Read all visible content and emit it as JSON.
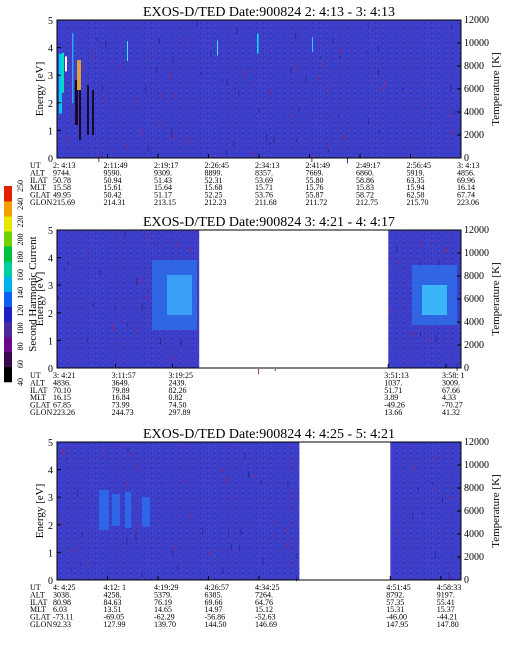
{
  "colorbar": {
    "label": "Second Harmonic Current",
    "ticks": [
      "40",
      "60",
      "80",
      "100",
      "120",
      "140",
      "160",
      "180",
      "200",
      "220",
      "240",
      "250"
    ],
    "colors": [
      "#000000",
      "#3a0a4a",
      "#6a0a8a",
      "#4a2a9a",
      "#2020c0",
      "#1060f0",
      "#00b0e8",
      "#00d0a0",
      "#00c040",
      "#70d000",
      "#e8e800",
      "#f0a000",
      "#e02000"
    ]
  },
  "chart_data": [
    {
      "type": "heatmap",
      "title": "EXOS-D/TED   Date:900824  2: 4:13 - 3: 4:13",
      "ylabel": "Energy [eV]",
      "y2label": "Temperature [K]",
      "ylim": [
        0,
        5
      ],
      "y2lim": [
        0,
        12000
      ],
      "yticks": [
        "0",
        "1",
        "2",
        "3",
        "4",
        "5"
      ],
      "y2ticks": [
        "0",
        "2000",
        "4000",
        "6000",
        "8000",
        "10000",
        "12000"
      ],
      "gaps": [],
      "row_labels": [
        "UT",
        "ALT",
        "ILAT",
        "MLT",
        "GLAT",
        "GLON"
      ],
      "columns": [
        {
          "frac": 0.0,
          "vals": [
            "2: 4:13",
            "9744.",
            "50.78",
            "15.58",
            "49.95",
            "215.69"
          ]
        },
        {
          "frac": 0.125,
          "vals": [
            "2:11:49",
            "9590.",
            "50.94",
            "15.61",
            "50.42",
            "214.31"
          ]
        },
        {
          "frac": 0.25,
          "vals": [
            "2:19:17",
            "9309.",
            "51.43",
            "15.64",
            "51.17",
            "213.15"
          ]
        },
        {
          "frac": 0.375,
          "vals": [
            "2:26:45",
            "8899.",
            "52.31",
            "15.68",
            "52.25",
            "212.23"
          ]
        },
        {
          "frac": 0.5,
          "vals": [
            "2:34:13",
            "8357.",
            "53.69",
            "15.71",
            "53.76",
            "211.68"
          ]
        },
        {
          "frac": 0.625,
          "vals": [
            "2:41:49",
            "7669.",
            "55.80",
            "15.76",
            "55.87",
            "211.72"
          ]
        },
        {
          "frac": 0.75,
          "vals": [
            "2:49:17",
            "6860.",
            "58.86",
            "15.83",
            "58.72",
            "212.75"
          ]
        },
        {
          "frac": 0.875,
          "vals": [
            "2:56:45",
            "5919.",
            "63.35",
            "15.94",
            "62.58",
            "215.70"
          ]
        },
        {
          "frac": 1.0,
          "vals": [
            "3: 4:13",
            "4856.",
            "69.96",
            "16.14",
            "67.74",
            "223.06"
          ]
        }
      ]
    },
    {
      "type": "heatmap",
      "title": "EXOS-D/TED   Date:900824  3: 4:21 - 4: 4:17",
      "ylabel": "Energy [eV]",
      "y2label": "Temperature [K]",
      "ylim": [
        0,
        5
      ],
      "y2lim": [
        0,
        12000
      ],
      "yticks": [
        "0",
        "1",
        "2",
        "3",
        "4",
        "5"
      ],
      "y2ticks": [
        "0",
        "2000",
        "4000",
        "6000",
        "8000",
        "10000",
        "12000"
      ],
      "gaps": [
        [
          0.352,
          0.82
        ]
      ],
      "row_labels": [
        "UT",
        "ALT",
        "ILAT",
        "MLT",
        "GLAT",
        "GLON"
      ],
      "columns": [
        {
          "frac": 0.0,
          "vals": [
            "3: 4:21",
            "4836.",
            "70.10",
            "16.15",
            "67.85",
            "223.26"
          ]
        },
        {
          "frac": 0.145,
          "vals": [
            "3:11:57",
            "3649.",
            "79.89",
            "16.84",
            "73.99",
            "244.73"
          ]
        },
        {
          "frac": 0.286,
          "vals": [
            "3:19:25",
            "2439.",
            "82.26",
            "0.82",
            "74.50",
            "297.89"
          ]
        },
        {
          "frac": 0.82,
          "vals": [
            "3:51:13",
            "1037.",
            "51.71",
            "3.89",
            "-49.26",
            "13.66"
          ]
        },
        {
          "frac": 0.963,
          "vals": [
            "3:58: 1",
            "3009.",
            "67.66",
            "4.33",
            "-70.27",
            "41.32"
          ]
        }
      ]
    },
    {
      "type": "heatmap",
      "title": "EXOS-D/TED   Date:900824  4: 4:25 - 5: 4:21",
      "ylabel": "Energy [eV]",
      "y2label": "Temperature [K]",
      "ylim": [
        0,
        5
      ],
      "y2lim": [
        0,
        12000
      ],
      "yticks": [
        "0",
        "1",
        "2",
        "3",
        "4",
        "5"
      ],
      "y2ticks": [
        "0",
        "2000",
        "4000",
        "6000",
        "8000",
        "10000",
        "12000"
      ],
      "gaps": [
        [
          0.6,
          0.825
        ]
      ],
      "row_labels": [
        "UT",
        "ALT",
        "ILAT",
        "MLT",
        "GLAT",
        "GLON"
      ],
      "columns": [
        {
          "frac": 0.0,
          "vals": [
            "4: 4:25",
            "3038.",
            "80.98",
            "6.03",
            "-73.11",
            "92.33"
          ]
        },
        {
          "frac": 0.125,
          "vals": [
            "4:12: 1",
            "4258.",
            "84.63",
            "13.51",
            "-69.05",
            "127.99"
          ]
        },
        {
          "frac": 0.25,
          "vals": [
            "4:19:29",
            "5379.",
            "76.19",
            "14.65",
            "-62.29",
            "139.70"
          ]
        },
        {
          "frac": 0.375,
          "vals": [
            "4:26:57",
            "6385.",
            "69.66",
            "14.97",
            "-56.86",
            "144.50"
          ]
        },
        {
          "frac": 0.5,
          "vals": [
            "4:34:25",
            "7264.",
            "64.76",
            "15.12",
            "-52.63",
            "146.69"
          ]
        },
        {
          "frac": 0.825,
          "vals": [
            "4:51:45",
            "8792.",
            "57.35",
            "15.31",
            "-46.00",
            "147.95"
          ]
        },
        {
          "frac": 0.95,
          "vals": [
            "4:58:33",
            "9197.",
            "55.41",
            "15.37",
            "-44.21",
            "147.80"
          ]
        }
      ]
    }
  ]
}
